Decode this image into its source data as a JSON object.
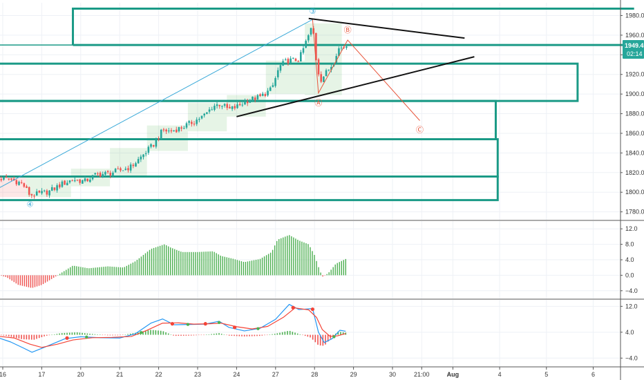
{
  "colors": {
    "background": "#ffffff",
    "grid": "#eef1f6",
    "zone": "#1a9a86",
    "price_tag": "#26a69a",
    "wave_line": "#e8553b",
    "wave_blue_line": "#39a9d8",
    "trend_line": "#111111",
    "candle_up": "#26a69a",
    "candle_down": "#ef5350",
    "box_green": "rgba(76,175,80,0.14)",
    "box_red": "rgba(239,83,80,0.14)",
    "hist_pos": "#4caf50",
    "hist_neg": "#ef5350",
    "macd_line": "#2196f3",
    "signal_line": "#f44336",
    "separator": "#555555"
  },
  "price_tag": {
    "value": "1949.4",
    "countdown": "02:14"
  },
  "x_axis": {
    "ticks": [
      {
        "label": "16",
        "slot": 0
      },
      {
        "label": "17",
        "slot": 1
      },
      {
        "label": "20",
        "slot": 2
      },
      {
        "label": "21",
        "slot": 3
      },
      {
        "label": "22",
        "slot": 4
      },
      {
        "label": "23",
        "slot": 5
      },
      {
        "label": "24",
        "slot": 6
      },
      {
        "label": "27",
        "slot": 7
      },
      {
        "label": "28",
        "slot": 8
      },
      {
        "label": "29",
        "slot": 9
      },
      {
        "label": "30",
        "slot": 10
      },
      {
        "label": "21:00",
        "slot": 10.75
      },
      {
        "label": "Aug",
        "slot": 11.55
      },
      {
        "label": "4",
        "slot": 12.75
      },
      {
        "label": "5",
        "slot": 13.95
      },
      {
        "label": "6",
        "slot": 15.15
      }
    ]
  },
  "chart_data": [
    {
      "type": "line",
      "panel": "price",
      "y_ticks": [
        "1980.0",
        "1960.0",
        "1940.0",
        "1920.0",
        "1900.0",
        "1880.0",
        "1860.0",
        "1840.0",
        "1820.0",
        "1800.0",
        "1780.0"
      ],
      "ylim": [
        1772,
        1993
      ],
      "grid": true,
      "close_series": [
        {
          "x": -0.3,
          "y": 1814
        },
        {
          "x": 0.2,
          "y": 1813
        },
        {
          "x": 0.5,
          "y": 1809
        },
        {
          "x": 0.7,
          "y": 1797
        },
        {
          "x": 0.9,
          "y": 1798
        },
        {
          "x": 1.2,
          "y": 1801
        },
        {
          "x": 1.5,
          "y": 1808
        },
        {
          "x": 1.8,
          "y": 1813
        },
        {
          "x": 2.1,
          "y": 1811
        },
        {
          "x": 2.4,
          "y": 1818
        },
        {
          "x": 2.7,
          "y": 1819
        },
        {
          "x": 3.0,
          "y": 1822
        },
        {
          "x": 3.3,
          "y": 1826
        },
        {
          "x": 3.6,
          "y": 1838
        },
        {
          "x": 3.9,
          "y": 1850
        },
        {
          "x": 4.1,
          "y": 1863
        },
        {
          "x": 4.3,
          "y": 1862
        },
        {
          "x": 4.6,
          "y": 1866
        },
        {
          "x": 4.9,
          "y": 1872
        },
        {
          "x": 5.2,
          "y": 1879
        },
        {
          "x": 5.4,
          "y": 1888
        },
        {
          "x": 5.6,
          "y": 1890
        },
        {
          "x": 5.8,
          "y": 1884
        },
        {
          "x": 6.0,
          "y": 1887
        },
        {
          "x": 6.3,
          "y": 1894
        },
        {
          "x": 6.6,
          "y": 1897
        },
        {
          "x": 6.9,
          "y": 1905
        },
        {
          "x": 7.1,
          "y": 1928
        },
        {
          "x": 7.3,
          "y": 1934
        },
        {
          "x": 7.6,
          "y": 1935
        },
        {
          "x": 7.8,
          "y": 1955
        },
        {
          "x": 7.95,
          "y": 1970
        },
        {
          "x": 8.05,
          "y": 1931
        },
        {
          "x": 8.15,
          "y": 1914
        },
        {
          "x": 8.3,
          "y": 1922
        },
        {
          "x": 8.45,
          "y": 1930
        },
        {
          "x": 8.6,
          "y": 1946
        },
        {
          "x": 8.75,
          "y": 1948
        },
        {
          "x": 8.82,
          "y": 1949.4
        }
      ],
      "zones": [
        {
          "y1": 1987,
          "y2": 1950,
          "x_start": 1.8,
          "x_end": 16.2,
          "left_open": true,
          "right_open": true
        },
        {
          "y1": 1931,
          "y2": 1893,
          "x_start": -0.5,
          "x_end": 14.75,
          "left_open": true
        },
        {
          "y1": 1893,
          "y2": 1854,
          "x_start": -0.5,
          "x_end": 12.65,
          "left_open": true
        },
        {
          "y1": 1854,
          "y2": 1816,
          "x_start": -0.5,
          "x_end": 12.7,
          "left_open": true
        },
        {
          "y1": 1816,
          "y2": 1792,
          "x_start": -0.5,
          "x_end": 12.7,
          "left_open": true
        }
      ],
      "boxes": [
        {
          "x1": -0.5,
          "x2": 0.6,
          "y1": 1817,
          "y2": 1795,
          "tone": "red"
        },
        {
          "x1": 0.6,
          "x2": 1.75,
          "y1": 1815,
          "y2": 1795,
          "tone": "green"
        },
        {
          "x1": 1.75,
          "x2": 2.75,
          "y1": 1824,
          "y2": 1806,
          "tone": "green"
        },
        {
          "x1": 2.75,
          "x2": 3.7,
          "y1": 1845,
          "y2": 1817,
          "tone": "green"
        },
        {
          "x1": 3.7,
          "x2": 4.75,
          "y1": 1868,
          "y2": 1842,
          "tone": "green"
        },
        {
          "x1": 4.75,
          "x2": 5.75,
          "y1": 1891,
          "y2": 1862,
          "tone": "green"
        },
        {
          "x1": 5.75,
          "x2": 6.75,
          "y1": 1899,
          "y2": 1877,
          "tone": "green"
        },
        {
          "x1": 6.75,
          "x2": 7.75,
          "y1": 1934,
          "y2": 1900,
          "tone": "green"
        },
        {
          "x1": 7.75,
          "x2": 8.7,
          "y1": 1972,
          "y2": 1899,
          "tone": "green"
        }
      ],
      "wave_labels": [
        "④",
        "③",
        "Ⓐ",
        "Ⓑ",
        "Ⓒ"
      ],
      "wave_points": [
        {
          "x": 0.7,
          "y": 1797,
          "label_index": 0,
          "label_dy": 13,
          "color": "blue"
        },
        {
          "x": 7.95,
          "y": 1976,
          "label_index": 1,
          "label_dy": -12,
          "color": "blue"
        },
        {
          "x": 8.1,
          "y": 1901,
          "label_index": 2,
          "label_dy": 14,
          "color": "red"
        },
        {
          "x": 8.85,
          "y": 1955,
          "label_index": 3,
          "label_dy": -15,
          "color": "red"
        },
        {
          "x": 10.7,
          "y": 1873,
          "label_index": 4,
          "label_dy": 13,
          "color": "red"
        }
      ],
      "trend_lines": [
        {
          "x1": 7.85,
          "y1": 1977,
          "x2": 11.85,
          "y2": 1957
        },
        {
          "x1": 6.0,
          "y1": 1877,
          "x2": 12.1,
          "y2": 1938
        }
      ]
    },
    {
      "type": "bar",
      "panel": "oscillator",
      "y_ticks": [
        "12.0",
        "8.0",
        "4.0",
        "0.0",
        "-4.0"
      ],
      "ylim": [
        -6,
        14
      ],
      "grid": true,
      "x_range": [
        -0.3,
        8.8
      ],
      "keyframes": [
        {
          "x": -0.3,
          "y": 0.6
        },
        {
          "x": 0.1,
          "y": -0.5
        },
        {
          "x": 0.4,
          "y": -2.5
        },
        {
          "x": 0.75,
          "y": -3.3
        },
        {
          "x": 1.0,
          "y": -2.5
        },
        {
          "x": 1.25,
          "y": -1.0
        },
        {
          "x": 1.5,
          "y": 0.6
        },
        {
          "x": 1.8,
          "y": 2.5
        },
        {
          "x": 2.2,
          "y": 1.8
        },
        {
          "x": 2.7,
          "y": 2.3
        },
        {
          "x": 3.1,
          "y": 2.0
        },
        {
          "x": 3.4,
          "y": 3.6
        },
        {
          "x": 3.8,
          "y": 6.8
        },
        {
          "x": 4.15,
          "y": 8.0
        },
        {
          "x": 4.3,
          "y": 7.2
        },
        {
          "x": 4.6,
          "y": 6.0
        },
        {
          "x": 5.0,
          "y": 6.0
        },
        {
          "x": 5.4,
          "y": 6.2
        },
        {
          "x": 5.6,
          "y": 5.0
        },
        {
          "x": 5.9,
          "y": 4.3
        },
        {
          "x": 6.2,
          "y": 3.4
        },
        {
          "x": 6.6,
          "y": 4.2
        },
        {
          "x": 6.9,
          "y": 6.0
        },
        {
          "x": 7.05,
          "y": 9.2
        },
        {
          "x": 7.35,
          "y": 10.4
        },
        {
          "x": 7.6,
          "y": 9.0
        },
        {
          "x": 7.85,
          "y": 8.0
        },
        {
          "x": 8.0,
          "y": 5.2
        },
        {
          "x": 8.1,
          "y": 2.2
        },
        {
          "x": 8.2,
          "y": -0.4
        },
        {
          "x": 8.35,
          "y": 0.5
        },
        {
          "x": 8.55,
          "y": 3.0
        },
        {
          "x": 8.8,
          "y": 4.2
        }
      ]
    },
    {
      "type": "line",
      "panel": "macd",
      "y_ticks": [
        "12.0",
        "4.0",
        "-4.0"
      ],
      "ylim": [
        -6.5,
        14
      ],
      "grid": true,
      "series": [
        {
          "role": "macd",
          "points": [
            {
              "x": -0.3,
              "y": 3.0
            },
            {
              "x": 0.2,
              "y": 1.0
            },
            {
              "x": 0.55,
              "y": -1.0
            },
            {
              "x": 0.75,
              "y": -2.2
            },
            {
              "x": 1.1,
              "y": -0.5
            },
            {
              "x": 1.6,
              "y": 2.0
            },
            {
              "x": 2.0,
              "y": 2.6
            },
            {
              "x": 2.5,
              "y": 2.3
            },
            {
              "x": 3.0,
              "y": 2.2
            },
            {
              "x": 3.4,
              "y": 3.5
            },
            {
              "x": 3.8,
              "y": 6.8
            },
            {
              "x": 4.1,
              "y": 8.1
            },
            {
              "x": 4.4,
              "y": 6.3
            },
            {
              "x": 4.8,
              "y": 6.4
            },
            {
              "x": 5.2,
              "y": 6.5
            },
            {
              "x": 5.55,
              "y": 7.4
            },
            {
              "x": 5.8,
              "y": 5.5
            },
            {
              "x": 6.2,
              "y": 4.4
            },
            {
              "x": 6.6,
              "y": 5.2
            },
            {
              "x": 7.0,
              "y": 8.0
            },
            {
              "x": 7.35,
              "y": 12.6
            },
            {
              "x": 7.6,
              "y": 11.0
            },
            {
              "x": 7.95,
              "y": 11.3
            },
            {
              "x": 8.1,
              "y": 4.0
            },
            {
              "x": 8.25,
              "y": 0.8
            },
            {
              "x": 8.45,
              "y": 2.0
            },
            {
              "x": 8.65,
              "y": 4.6
            },
            {
              "x": 8.8,
              "y": 4.3
            }
          ]
        },
        {
          "role": "signal",
          "points": [
            {
              "x": -0.3,
              "y": 3.0
            },
            {
              "x": 0.3,
              "y": 2.2
            },
            {
              "x": 0.7,
              "y": 0.3
            },
            {
              "x": 1.0,
              "y": -0.7
            },
            {
              "x": 1.4,
              "y": 0.3
            },
            {
              "x": 1.8,
              "y": 1.6
            },
            {
              "x": 2.3,
              "y": 2.3
            },
            {
              "x": 2.8,
              "y": 2.4
            },
            {
              "x": 3.3,
              "y": 2.7
            },
            {
              "x": 3.7,
              "y": 4.6
            },
            {
              "x": 4.1,
              "y": 6.8
            },
            {
              "x": 4.5,
              "y": 6.9
            },
            {
              "x": 4.9,
              "y": 6.5
            },
            {
              "x": 5.3,
              "y": 6.6
            },
            {
              "x": 5.6,
              "y": 6.8
            },
            {
              "x": 6.0,
              "y": 5.7
            },
            {
              "x": 6.4,
              "y": 5.0
            },
            {
              "x": 6.8,
              "y": 5.8
            },
            {
              "x": 7.2,
              "y": 8.6
            },
            {
              "x": 7.5,
              "y": 11.5
            },
            {
              "x": 7.85,
              "y": 10.9
            },
            {
              "x": 8.05,
              "y": 8.6
            },
            {
              "x": 8.2,
              "y": 4.8
            },
            {
              "x": 8.4,
              "y": 2.7
            },
            {
              "x": 8.6,
              "y": 2.9
            },
            {
              "x": 8.8,
              "y": 3.6
            }
          ]
        }
      ],
      "histogram_keyframes": [
        {
          "x": -0.3,
          "y": 0.3
        },
        {
          "x": 0.1,
          "y": -0.4
        },
        {
          "x": 0.5,
          "y": -1.6
        },
        {
          "x": 0.8,
          "y": -1.8
        },
        {
          "x": 1.1,
          "y": -0.4
        },
        {
          "x": 1.5,
          "y": 0.6
        },
        {
          "x": 1.9,
          "y": 0.9
        },
        {
          "x": 2.3,
          "y": 0.3
        },
        {
          "x": 2.7,
          "y": -0.2
        },
        {
          "x": 3.0,
          "y": -0.2
        },
        {
          "x": 3.4,
          "y": 0.7
        },
        {
          "x": 3.8,
          "y": 1.8
        },
        {
          "x": 4.1,
          "y": 1.4
        },
        {
          "x": 4.4,
          "y": -0.4
        },
        {
          "x": 4.8,
          "y": -0.3
        },
        {
          "x": 5.2,
          "y": 0.0
        },
        {
          "x": 5.55,
          "y": 0.6
        },
        {
          "x": 5.8,
          "y": -0.3
        },
        {
          "x": 6.2,
          "y": -0.6
        },
        {
          "x": 6.6,
          "y": -0.4
        },
        {
          "x": 7.0,
          "y": 0.4
        },
        {
          "x": 7.35,
          "y": 1.5
        },
        {
          "x": 7.6,
          "y": 0.3
        },
        {
          "x": 7.9,
          "y": -1.0
        },
        {
          "x": 8.1,
          "y": -3.8
        },
        {
          "x": 8.25,
          "y": -4.0
        },
        {
          "x": 8.45,
          "y": -0.8
        },
        {
          "x": 8.6,
          "y": 1.2
        },
        {
          "x": 8.8,
          "y": 0.8
        }
      ],
      "cross_markers": [
        {
          "x": 1.65,
          "y": 2.2,
          "color": "red"
        },
        {
          "x": 2.15,
          "y": 2.5,
          "color": "green"
        },
        {
          "x": 3.55,
          "y": 3.9,
          "color": "green"
        },
        {
          "x": 4.35,
          "y": 6.6,
          "color": "red"
        },
        {
          "x": 4.75,
          "y": 6.4,
          "color": "green"
        },
        {
          "x": 5.2,
          "y": 6.6,
          "color": "red"
        },
        {
          "x": 5.55,
          "y": 7.0,
          "color": "green"
        },
        {
          "x": 5.95,
          "y": 5.5,
          "color": "red"
        },
        {
          "x": 6.55,
          "y": 5.1,
          "color": "green"
        },
        {
          "x": 7.45,
          "y": 11.6,
          "color": "red"
        },
        {
          "x": 7.95,
          "y": 11.1,
          "color": "red"
        },
        {
          "x": 8.5,
          "y": 2.6,
          "color": "green"
        }
      ]
    }
  ]
}
